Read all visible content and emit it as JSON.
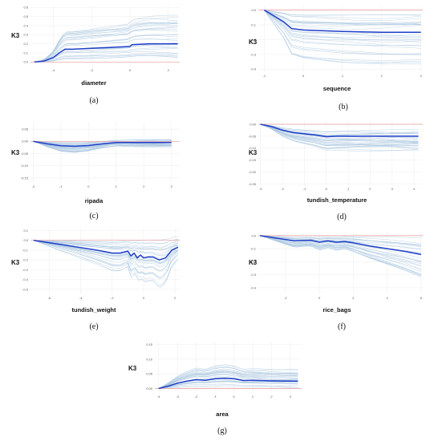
{
  "colors": {
    "average_line": "#1f3fc8",
    "ice_lines": "#a9c6e0",
    "reference_line": "#e99a9a",
    "grid": "#ececec"
  },
  "chart_data": [
    {
      "type": "line",
      "panel": "(a)",
      "xlabel": "diameter",
      "ylabel": "K3",
      "xlim": [
        -5.2,
        2.6
      ],
      "ylim": [
        -0.05,
        0.62
      ],
      "xticks": [
        -4,
        -2,
        0,
        2
      ],
      "yticks": [
        0.0,
        0.1,
        0.2,
        0.3,
        0.4,
        0.5,
        0.6
      ],
      "ytick_labels": [
        "0.0",
        "0.1",
        "0.2",
        "0.3",
        "0.4",
        "0.5",
        "0.6"
      ],
      "reference_y": 0.0,
      "average": {
        "x": [
          -5,
          -4.5,
          -4.0,
          -3.7,
          -3.4,
          -3.0,
          -2.0,
          -1.0,
          0.0,
          0.1,
          1.0,
          2.0,
          2.5
        ],
        "y": [
          0.0,
          0.01,
          0.05,
          0.1,
          0.14,
          0.14,
          0.15,
          0.16,
          0.17,
          0.19,
          0.2,
          0.2,
          0.2
        ]
      },
      "ice_lines": 30
    },
    {
      "type": "line",
      "panel": "(b)",
      "xlabel": "sequence",
      "ylabel": "K3",
      "xlim": [
        -1.15,
        3.05
      ],
      "ylim": [
        -0.42,
        0.03
      ],
      "xticks": [
        -1,
        0,
        1,
        2,
        3
      ],
      "yticks": [
        0.0,
        -0.1,
        -0.2,
        -0.3,
        -0.4
      ],
      "ytick_labels": [
        "0.0",
        "-0.1",
        "-0.2",
        "-0.3",
        "-0.4"
      ],
      "reference_y": 0.0,
      "average": {
        "x": [
          -1,
          -0.5,
          -0.3,
          0.0,
          1.0,
          2.0,
          3.0
        ],
        "y": [
          0.0,
          -0.08,
          -0.125,
          -0.135,
          -0.145,
          -0.15,
          -0.15
        ]
      },
      "ice_lines": 30
    },
    {
      "type": "line",
      "panel": "(c)",
      "xlabel": "ripada",
      "ylabel": "K3",
      "xlim": [
        -2.1,
        3.3
      ],
      "ylim": [
        -0.17,
        0.08
      ],
      "xticks": [
        -2,
        -1,
        0,
        1,
        2,
        3
      ],
      "yticks": [
        0.05,
        0.0,
        -0.05,
        -0.1,
        -0.15
      ],
      "ytick_labels": [
        "0.05",
        "0.00",
        "-0.05",
        "-0.10",
        "-0.15"
      ],
      "reference_y": 0.0,
      "average": {
        "x": [
          -2,
          -1.5,
          -1,
          -0.5,
          0,
          0.5,
          1,
          1.5,
          2,
          3
        ],
        "y": [
          0.0,
          -0.01,
          -0.018,
          -0.02,
          -0.017,
          -0.01,
          -0.005,
          -0.005,
          -0.005,
          -0.005
        ]
      },
      "ice_lines": 30
    },
    {
      "type": "line",
      "panel": "(d)",
      "xlabel": "tundish_temperature",
      "ylabel": "K3",
      "xlim": [
        -3.1,
        4.4
      ],
      "ylim": [
        -0.255,
        0.02
      ],
      "xticks": [
        -3,
        -2,
        -1,
        0,
        1,
        2,
        3,
        4
      ],
      "yticks": [
        0.0,
        -0.05,
        -0.1,
        -0.15,
        -0.2,
        -0.25
      ],
      "ytick_labels": [
        "0.00",
        "-0.05",
        "-0.10",
        "-0.15",
        "-0.20",
        "-0.25"
      ],
      "reference_y": 0.0,
      "average": {
        "x": [
          -3,
          -2.5,
          -2,
          -1.5,
          -1,
          -0.5,
          0,
          0.5,
          1,
          2,
          3,
          4.2
        ],
        "y": [
          0.0,
          -0.01,
          -0.025,
          -0.035,
          -0.04,
          -0.045,
          -0.052,
          -0.05,
          -0.05,
          -0.05,
          -0.05,
          -0.05
        ]
      },
      "ice_lines": 30
    },
    {
      "type": "line",
      "panel": "(e)",
      "xlabel": "tundish_weight",
      "ylabel": "K3",
      "xlim": [
        -7.2,
        2.3
      ],
      "ylim": [
        -0.55,
        0.12
      ],
      "xticks": [
        -6,
        -4,
        -2,
        0,
        2
      ],
      "yticks": [
        0.1,
        0.0,
        -0.1,
        -0.2,
        -0.3,
        -0.4,
        -0.5
      ],
      "ytick_labels": [
        "0.1",
        "0.0",
        "-0.1",
        "-0.2",
        "-0.3",
        "-0.4",
        "-0.5"
      ],
      "reference_y": 0.0,
      "average": {
        "x": [
          -7,
          -6,
          -5,
          -4,
          -3,
          -2,
          -1.5,
          -1.0,
          -0.8,
          -0.6,
          -0.4,
          -0.2,
          0.0,
          0.3,
          0.6,
          1.0,
          1.4,
          1.8,
          2.2
        ],
        "y": [
          0.0,
          -0.025,
          -0.05,
          -0.075,
          -0.1,
          -0.13,
          -0.13,
          -0.11,
          -0.16,
          -0.13,
          -0.18,
          -0.15,
          -0.18,
          -0.17,
          -0.17,
          -0.2,
          -0.18,
          -0.1,
          -0.07
        ]
      },
      "ice_lines": 30
    },
    {
      "type": "line",
      "panel": "(f)",
      "xlabel": "rice_bags",
      "ylabel": "K3",
      "xlim": [
        -3.6,
        6.1
      ],
      "ylim": [
        -0.45,
        0.03
      ],
      "xticks": [
        -2,
        0,
        2,
        4,
        6
      ],
      "yticks": [
        0.0,
        -0.1,
        -0.2,
        -0.3,
        -0.4
      ],
      "ytick_labels": [
        "0.0",
        "-0.1",
        "-0.2",
        "-0.3",
        "-0.4"
      ],
      "reference_y": 0.0,
      "average": {
        "x": [
          -3.5,
          -2.5,
          -1.5,
          -0.5,
          0.0,
          0.5,
          1.0,
          1.5,
          2.0,
          3.0,
          4.0,
          5.0,
          6.0
        ],
        "y": [
          0.0,
          -0.02,
          -0.04,
          -0.035,
          -0.05,
          -0.04,
          -0.05,
          -0.045,
          -0.055,
          -0.08,
          -0.1,
          -0.12,
          -0.145
        ]
      },
      "ice_lines": 30
    },
    {
      "type": "line",
      "panel": "(g)",
      "xlabel": "area",
      "ylabel": "K3",
      "xlim": [
        -4.2,
        3.6
      ],
      "ylim": [
        -0.015,
        0.16
      ],
      "xticks": [
        -4,
        -3,
        -2,
        -1,
        0,
        1,
        2,
        3
      ],
      "yticks": [
        0.0,
        0.05,
        0.1,
        0.15
      ],
      "ytick_labels": [
        "0.00",
        "0.05",
        "0.10",
        "0.15"
      ],
      "reference_y": 0.0,
      "average": {
        "x": [
          -4,
          -3.5,
          -3,
          -2.5,
          -2,
          -1.5,
          -1,
          -0.5,
          0,
          0.5,
          1,
          2,
          3.4
        ],
        "y": [
          0.0,
          0.008,
          0.018,
          0.025,
          0.03,
          0.028,
          0.033,
          0.035,
          0.033,
          0.027,
          0.028,
          0.026,
          0.025
        ]
      },
      "ice_lines": 30
    }
  ]
}
